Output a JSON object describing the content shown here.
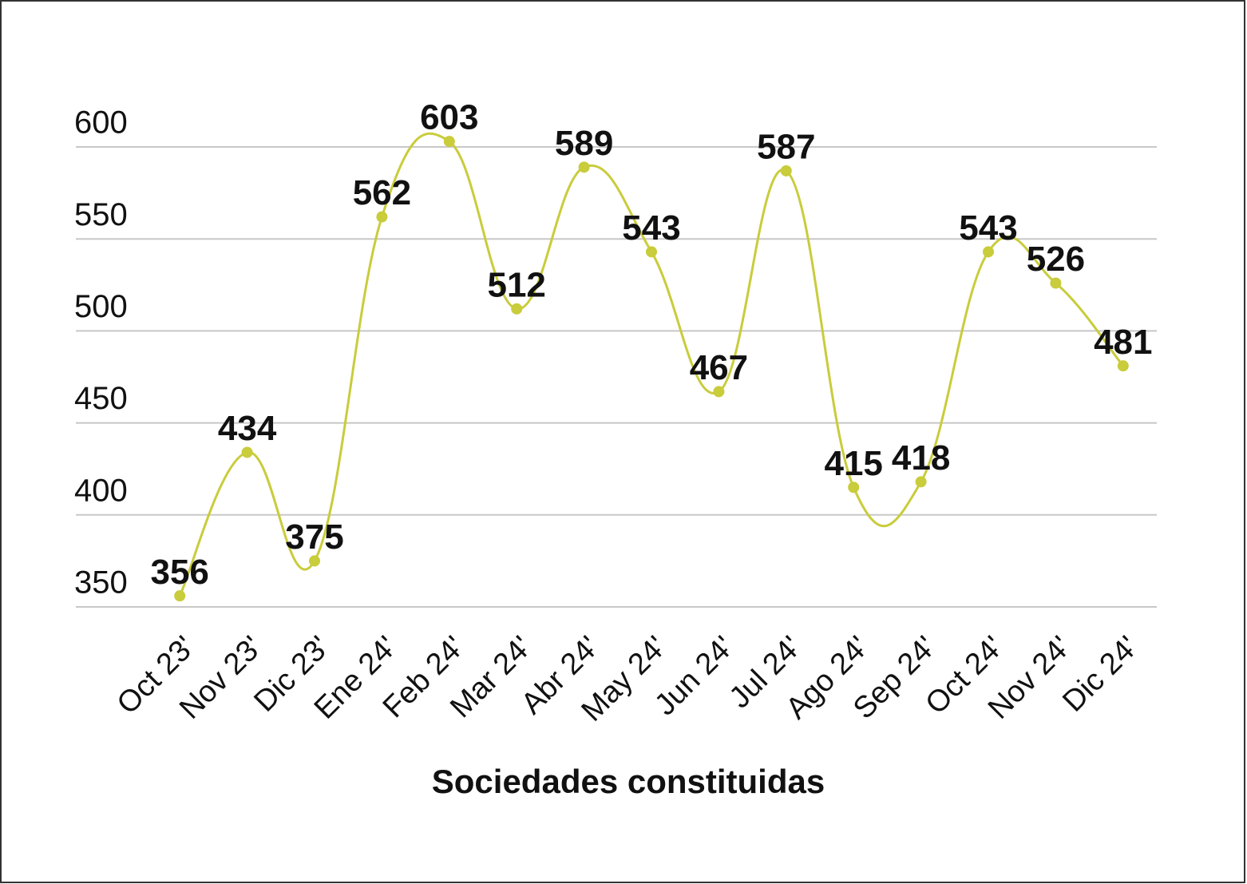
{
  "chart_data": {
    "type": "line",
    "x_label": "Sociedades constituidas",
    "categories": [
      "Oct 23'",
      "Nov 23'",
      "Dic 23'",
      "Ene 24'",
      "Feb 24'",
      "Mar 24'",
      "Abr 24'",
      "May 24'",
      "Jun 24'",
      "Jul 24'",
      "Ago 24'",
      "Sep 24'",
      "Oct 24'",
      "Nov 24'",
      "Dic 24'"
    ],
    "values": [
      356,
      434,
      375,
      562,
      603,
      512,
      589,
      543,
      467,
      587,
      415,
      418,
      543,
      526,
      481
    ],
    "color": "#c9cc3b",
    "ylim": [
      350,
      600
    ],
    "yticks": [
      350,
      400,
      450,
      500,
      550,
      600
    ],
    "grid": true
  }
}
